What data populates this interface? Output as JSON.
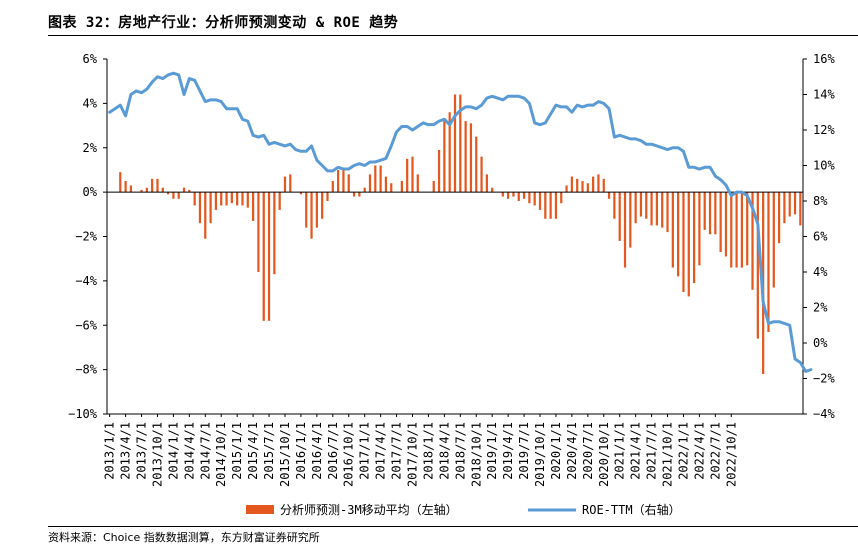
{
  "title": "图表 32：房地产行业：分析师预测变动 & ROE 趋势",
  "source": "资料来源：Choice 指数数据测算，东方财富证券研究所",
  "chart_data": {
    "type": "bar+line",
    "left_axis": {
      "min": -10,
      "max": 6,
      "ticks": [
        "6%",
        "4%",
        "2%",
        "0%",
        "−2%",
        "−4%",
        "−6%",
        "−8%",
        "−10%"
      ],
      "tick_values": [
        6,
        4,
        2,
        0,
        -2,
        -4,
        -6,
        -8,
        -10
      ]
    },
    "right_axis": {
      "min": -4,
      "max": 16,
      "ticks": [
        "16%",
        "14%",
        "12%",
        "10%",
        "8%",
        "6%",
        "4%",
        "2%",
        "0%",
        "−2%",
        "−4%"
      ],
      "tick_values": [
        16,
        14,
        12,
        10,
        8,
        6,
        4,
        2,
        0,
        -2,
        -4
      ]
    },
    "x_labels": [
      "2013/1/1",
      "2013/4/1",
      "2013/7/1",
      "2013/10/1",
      "2014/1/1",
      "2014/4/1",
      "2014/7/1",
      "2014/10/1",
      "2015/1/1",
      "2015/4/1",
      "2015/7/1",
      "2015/10/1",
      "2016/1/1",
      "2016/4/1",
      "2016/7/1",
      "2016/10/1",
      "2017/1/1",
      "2017/4/1",
      "2017/7/1",
      "2017/10/1",
      "2018/1/1",
      "2018/4/1",
      "2018/7/1",
      "2018/10/1",
      "2019/1/1",
      "2019/4/1",
      "2019/7/1",
      "2019/10/1",
      "2020/1/1",
      "2020/4/1",
      "2020/7/1",
      "2020/10/1",
      "2021/1/1",
      "2021/4/1",
      "2021/7/1",
      "2021/10/1",
      "2022/1/1",
      "2022/4/1",
      "2022/7/1",
      "2022/10/1"
    ],
    "start": "2013/1",
    "series": [
      {
        "name": "分析师预测-3M移动平均（左轴）",
        "axis": "left",
        "kind": "bar",
        "color": "#e4571f",
        "values": [
          0,
          0,
          0.9,
          0.5,
          0.3,
          0,
          0.1,
          0.2,
          0.6,
          0.6,
          0.2,
          -0.1,
          -0.3,
          -0.3,
          0.2,
          0.1,
          -0.6,
          -1.4,
          -2.1,
          -1.4,
          -0.8,
          -0.6,
          -0.6,
          -0.5,
          -0.6,
          -0.6,
          -0.7,
          -1.3,
          -3.6,
          -5.8,
          -5.8,
          -3.7,
          -0.8,
          0.7,
          0.8,
          0,
          -0.1,
          -1.6,
          -2.1,
          -1.6,
          -1.2,
          -0.4,
          0.5,
          1.0,
          1.0,
          0.8,
          -0.2,
          -0.2,
          0.2,
          0.8,
          1.2,
          1.2,
          0.7,
          0.4,
          0,
          0.5,
          1.5,
          1.6,
          0.8,
          0,
          0,
          0.5,
          1.9,
          3.2,
          3.6,
          4.4,
          4.4,
          3.2,
          3.1,
          2.5,
          1.6,
          0.8,
          0.2,
          0,
          -0.2,
          -0.3,
          -0.2,
          -0.4,
          -0.3,
          -0.5,
          -0.6,
          -0.8,
          -1.2,
          -1.2,
          -1.2,
          -0.5,
          0.3,
          0.7,
          0.6,
          0.5,
          0.4,
          0.7,
          0.8,
          0.6,
          -0.3,
          -1.2,
          -2.2,
          -3.4,
          -2.5,
          -1.4,
          -1.1,
          -1.2,
          -1.5,
          -1.5,
          -1.6,
          -1.8,
          -3.4,
          -3.8,
          -4.5,
          -4.7,
          -4.1,
          -3.3,
          -1.7,
          -1.9,
          -1.9,
          -2.7,
          -2.9,
          -3.4,
          -3.4,
          -3.4,
          -3.3,
          -4.4,
          -6.6,
          -8.2,
          -6.3,
          -4.3,
          -2.3,
          -1.4,
          -1.1,
          -1.0,
          -1.5
        ]
      },
      {
        "name": "ROE-TTM（右轴）",
        "axis": "right",
        "kind": "line",
        "color": "#5b9bd5",
        "values": [
          13.0,
          13.2,
          13.4,
          12.8,
          14.0,
          14.2,
          14.1,
          14.3,
          14.7,
          15.0,
          14.9,
          15.1,
          15.2,
          15.1,
          14.0,
          14.9,
          14.8,
          14.2,
          13.6,
          13.7,
          13.7,
          13.6,
          13.2,
          13.2,
          13.2,
          12.6,
          12.5,
          11.7,
          11.6,
          11.7,
          11.2,
          11.3,
          11.2,
          11.1,
          11.2,
          10.9,
          10.8,
          10.8,
          11.1,
          10.3,
          10.0,
          9.7,
          9.7,
          9.9,
          9.8,
          9.8,
          10.0,
          10.1,
          10.0,
          10.2,
          10.2,
          10.3,
          10.4,
          11.1,
          11.9,
          12.2,
          12.2,
          12.0,
          12.2,
          12.4,
          12.3,
          12.3,
          12.5,
          12.6,
          12.3,
          12.8,
          13.1,
          13.3,
          13.3,
          13.2,
          13.4,
          13.8,
          13.9,
          13.8,
          13.7,
          13.9,
          13.9,
          13.9,
          13.8,
          13.5,
          12.4,
          12.3,
          12.4,
          12.9,
          13.4,
          13.3,
          13.3,
          13.0,
          13.4,
          13.3,
          13.4,
          13.4,
          13.6,
          13.5,
          13.2,
          11.6,
          11.7,
          11.6,
          11.5,
          11.5,
          11.4,
          11.2,
          11.2,
          11.1,
          11.0,
          10.9,
          11.0,
          11.0,
          10.8,
          9.9,
          9.9,
          9.8,
          9.9,
          9.9,
          9.4,
          9.2,
          8.9,
          8.3,
          8.5,
          8.5,
          8.3,
          7.6,
          6.7,
          2.3,
          1.1,
          1.2,
          1.2,
          1.1,
          1.0,
          -0.9,
          -1.1,
          -1.6,
          -1.5
        ]
      }
    ]
  }
}
